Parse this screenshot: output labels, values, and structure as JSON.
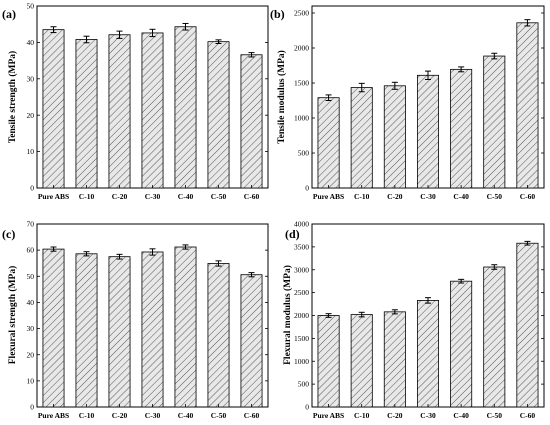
{
  "chart_data": [
    {
      "type": "bar",
      "panel": "(a)",
      "categories": [
        "Pure ABS",
        "C-10",
        "C-20",
        "C-30",
        "C-40",
        "C-50",
        "C-60"
      ],
      "values": [
        43.5,
        40.8,
        42.1,
        42.6,
        44.3,
        40.2,
        36.6
      ],
      "errors": [
        0.8,
        0.9,
        1.0,
        1.0,
        0.9,
        0.5,
        0.6
      ],
      "ylabel": "Tensile strength (MPa)",
      "ylim": [
        0,
        50
      ],
      "yticks": [
        0,
        10,
        20,
        30,
        40,
        50
      ],
      "grid": false
    },
    {
      "type": "bar",
      "panel": "(b)",
      "categories": [
        "Pure ABS",
        "C-10",
        "C-20",
        "C-30",
        "C-40",
        "C-50",
        "C-60"
      ],
      "values": [
        1290,
        1435,
        1460,
        1610,
        1695,
        1885,
        2360
      ],
      "errors": [
        40,
        60,
        50,
        60,
        35,
        40,
        45
      ],
      "ylabel": "Tensile modulus (MPa)",
      "ylim": [
        0,
        2600
      ],
      "yticks": [
        0,
        500,
        1000,
        1500,
        2000,
        2500
      ],
      "grid": false
    },
    {
      "type": "bar",
      "panel": "(c)",
      "categories": [
        "Pure ABS",
        "C-10",
        "C-20",
        "C-30",
        "C-40",
        "C-50",
        "C-60"
      ],
      "values": [
        60.4,
        58.6,
        57.5,
        59.3,
        61.2,
        54.9,
        50.6
      ],
      "errors": [
        0.8,
        0.8,
        0.9,
        1.2,
        0.8,
        1.0,
        0.8
      ],
      "ylabel": "Flexural strength (MPa)",
      "ylim": [
        0,
        70
      ],
      "yticks": [
        0,
        10,
        20,
        30,
        40,
        50,
        60,
        70
      ],
      "grid": false
    },
    {
      "type": "bar",
      "panel": "(d)",
      "categories": [
        "Pure ABS",
        "C-10",
        "C-20",
        "C-30",
        "C-40",
        "C-50",
        "C-60"
      ],
      "values": [
        2000,
        2020,
        2080,
        2330,
        2750,
        3060,
        3580
      ],
      "errors": [
        40,
        50,
        45,
        60,
        40,
        50,
        40
      ],
      "ylabel": "Flexural modulus (MPa)",
      "ylim": [
        0,
        4000
      ],
      "yticks": [
        0,
        500,
        1000,
        1500,
        2000,
        2500,
        3000,
        3500,
        4000
      ],
      "grid": false
    }
  ]
}
